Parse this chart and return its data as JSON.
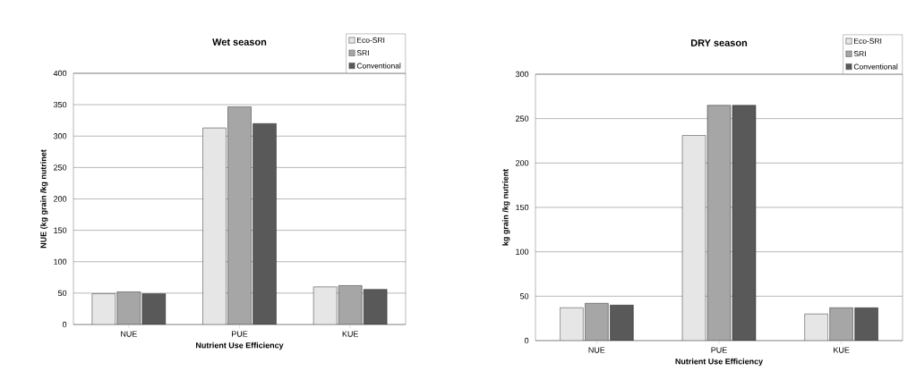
{
  "chart_data": [
    {
      "type": "bar",
      "title": "Wet season",
      "xlabel": "Nutrient Use Efficiency",
      "ylabel": "NUE (kg grain /kg nutrinet",
      "categories": [
        "NUE",
        "PUE",
        "KUE"
      ],
      "series": [
        {
          "name": "Eco-SRI",
          "color": "#e6e6e6",
          "values": [
            49,
            313,
            60
          ]
        },
        {
          "name": "SRI",
          "color": "#a6a6a6",
          "values": [
            52,
            347,
            62
          ]
        },
        {
          "name": "Conventional",
          "color": "#595959",
          "values": [
            49,
            320,
            56
          ]
        }
      ],
      "ylim": [
        0,
        400
      ],
      "yticks": [
        0,
        50,
        100,
        150,
        200,
        250,
        300,
        350,
        400
      ],
      "grid": "y",
      "legend": "top right"
    },
    {
      "type": "bar",
      "title": "DRY season",
      "xlabel": "Nutrient Use Efficiency",
      "ylabel": "kg grain /kg nutrient",
      "categories": [
        "NUE",
        "PUE",
        "KUE"
      ],
      "series": [
        {
          "name": "Eco-SRI",
          "color": "#e6e6e6",
          "values": [
            37,
            231,
            30
          ]
        },
        {
          "name": "SRI",
          "color": "#a6a6a6",
          "values": [
            42,
            265,
            37
          ]
        },
        {
          "name": "Conventional",
          "color": "#595959",
          "values": [
            40,
            265,
            37
          ]
        }
      ],
      "ylim": [
        0,
        300
      ],
      "yticks": [
        0,
        50,
        100,
        150,
        200,
        250,
        300
      ],
      "grid": "y",
      "legend": "top right"
    }
  ]
}
